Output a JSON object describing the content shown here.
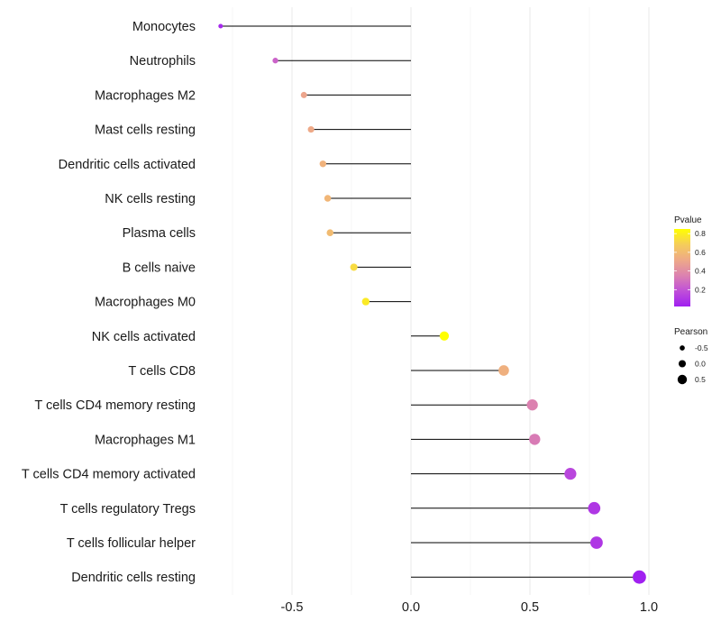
{
  "chart_data": {
    "type": "lollipop",
    "orientation": "horizontal",
    "xlim": [
      -0.75,
      1.0
    ],
    "xticks": [
      -0.5,
      0.0,
      0.5,
      1.0
    ],
    "xtick_labels": [
      "-0.5",
      "0.0",
      "0.5",
      "1.0"
    ],
    "baseline": 0,
    "grid": true,
    "categories": [
      "Monocytes",
      "Neutrophils",
      "Macrophages M2",
      "Mast cells resting",
      "Dendritic cells activated",
      "NK cells resting",
      "Plasma cells",
      "B cells naive",
      "Macrophages M0",
      "NK cells activated",
      "T cells CD8",
      "T cells CD4 memory resting",
      "Macrophages M1",
      "T cells CD4 memory activated",
      "T cells regulatory  Tregs",
      "T cells follicular helper",
      "Dendritic cells resting"
    ],
    "pearson": [
      -0.8,
      -0.57,
      -0.45,
      -0.42,
      -0.37,
      -0.35,
      -0.34,
      -0.24,
      -0.19,
      0.14,
      0.39,
      0.51,
      0.52,
      0.67,
      0.77,
      0.78,
      0.96
    ],
    "pvalue": [
      0.05,
      0.25,
      0.5,
      0.52,
      0.56,
      0.58,
      0.6,
      0.73,
      0.78,
      0.85,
      0.55,
      0.35,
      0.33,
      0.15,
      0.1,
      0.1,
      0.02
    ],
    "color_scale": {
      "title": "Pvalue",
      "min": 0.02,
      "max": 0.85,
      "ticks": [
        0.2,
        0.4,
        0.6,
        0.8
      ],
      "tick_labels": [
        "0.2",
        "0.4",
        "0.6",
        "0.8"
      ],
      "colors": [
        "#a020f0",
        "#c050d8",
        "#dc82b0",
        "#eea988",
        "#f5cd5a",
        "#ffff00"
      ]
    },
    "size_legend": {
      "title": "Pearson",
      "values": [
        -0.5,
        0.0,
        0.5
      ],
      "labels": [
        "-0.5",
        "0.0",
        "0.5"
      ]
    }
  }
}
